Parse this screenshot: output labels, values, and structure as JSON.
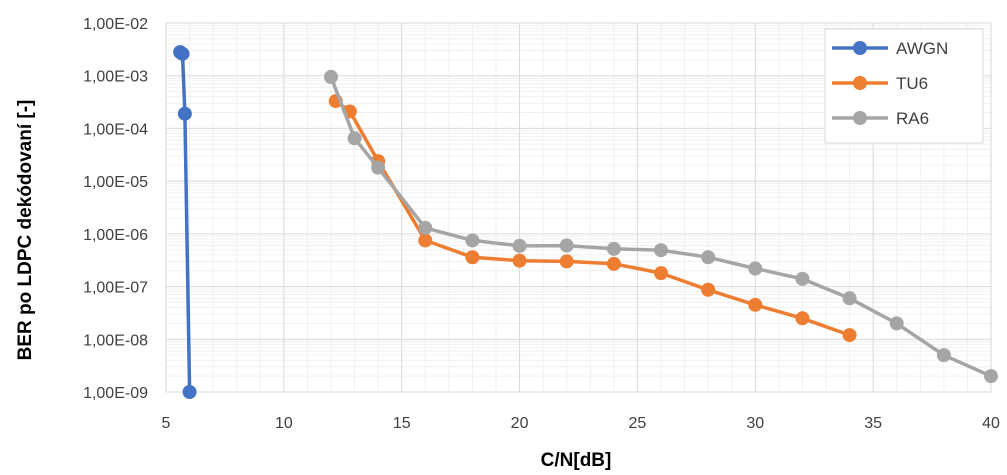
{
  "chart_data": {
    "type": "line",
    "xlabel": "C/N[dB]",
    "ylabel": "BER po LDPC dekódovaní [-]",
    "xlim": [
      5,
      40
    ],
    "ylim_log10": [
      -9,
      -2
    ],
    "yscale": "log",
    "x_ticks": [
      "5",
      "10",
      "15",
      "20",
      "25",
      "30",
      "35",
      "40"
    ],
    "y_ticks": [
      "1,00E-02",
      "1,00E-03",
      "1,00E-04",
      "1,00E-05",
      "1,00E-06",
      "1,00E-07",
      "1,00E-08",
      "1,00E-09"
    ],
    "grid": true,
    "legend_position": "top-right",
    "series": [
      {
        "name": "AWGN",
        "color": "#4472C4",
        "x": [
          5.6,
          5.7,
          5.8,
          6.0
        ],
        "y": [
          0.0028,
          0.0026,
          0.00019,
          1e-09
        ]
      },
      {
        "name": "TU6",
        "color": "#ED7D31",
        "x": [
          12.2,
          12.8,
          14,
          16,
          18,
          20,
          22,
          24,
          26,
          28,
          30,
          32,
          34
        ],
        "y": [
          0.00033,
          0.00021,
          2.4e-05,
          7.5e-07,
          3.6e-07,
          3.1e-07,
          3e-07,
          2.7e-07,
          1.8e-07,
          8.7e-08,
          4.5e-08,
          2.5e-08,
          1.2e-08
        ]
      },
      {
        "name": "RA6",
        "color": "#A5A5A5",
        "x": [
          12,
          13,
          14,
          16,
          18,
          20,
          22,
          24,
          26,
          28,
          30,
          32,
          34,
          36,
          38,
          40
        ],
        "y": [
          0.00095,
          6.5e-05,
          1.8e-05,
          1.3e-06,
          7.5e-07,
          5.9e-07,
          6e-07,
          5.2e-07,
          4.9e-07,
          3.6e-07,
          2.2e-07,
          1.4e-07,
          6e-08,
          2e-08,
          5e-09,
          2e-09
        ]
      }
    ]
  }
}
